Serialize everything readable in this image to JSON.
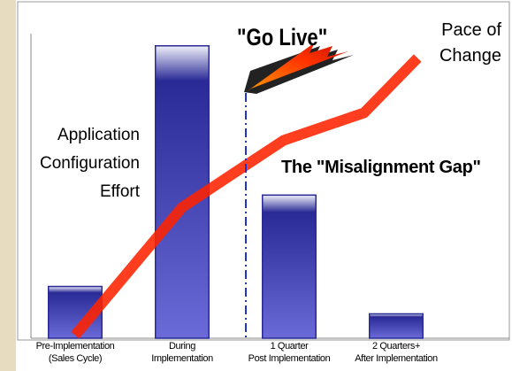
{
  "chart_data": {
    "type": "bar",
    "categories": [
      "Pre-Implementation\n(Sales Cycle)",
      "During\nImplementation",
      "1 Quarter\nPost Implementation",
      "2 Quarters+\nAfter Implementation"
    ],
    "values": [
      17,
      96,
      47,
      8
    ],
    "color": "#2a2a96",
    "ylim": [
      0,
      100
    ],
    "line": {
      "type": "line",
      "x": [
        0,
        1,
        1.95,
        2.7,
        3.2
      ],
      "values": [
        1,
        43,
        65,
        74,
        92
      ],
      "color": "#ff2200"
    },
    "y_label": "Application\nConfiguration\nEffort",
    "line_label": "Pace of\nChange",
    "go_live": "\"Go Live\"",
    "gap_label": "The \"Misalignment Gap\""
  }
}
